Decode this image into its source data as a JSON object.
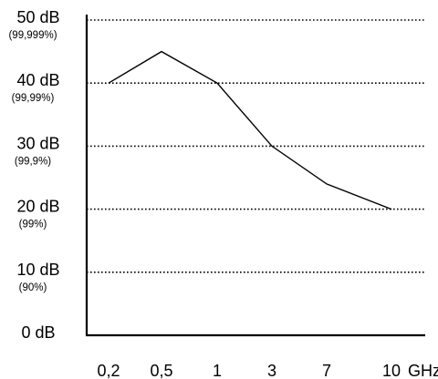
{
  "chart_data": {
    "type": "line",
    "x": [
      "0,2",
      "0,5",
      "1",
      "3",
      "7",
      "10"
    ],
    "x_unit": "GHz",
    "y_tick_labels": [
      {
        "value": 0,
        "label": "0 dB",
        "sub": ""
      },
      {
        "value": 10,
        "label": "10 dB",
        "sub": "(90%)"
      },
      {
        "value": 20,
        "label": "20 dB",
        "sub": "(99%)"
      },
      {
        "value": 30,
        "label": "30 dB",
        "sub": "(99,9%)"
      },
      {
        "value": 40,
        "label": "40 dB",
        "sub": "(99,99%)"
      },
      {
        "value": 50,
        "label": "50 dB",
        "sub": "(99,999%)"
      }
    ],
    "values": [
      40,
      45,
      40,
      30,
      24,
      20
    ],
    "ylim": [
      0,
      50
    ],
    "grid": "horizontal-dotted",
    "colors": {
      "line": "#000000",
      "axis": "#000000",
      "grid": "#000000",
      "background": "#ffffff"
    }
  }
}
